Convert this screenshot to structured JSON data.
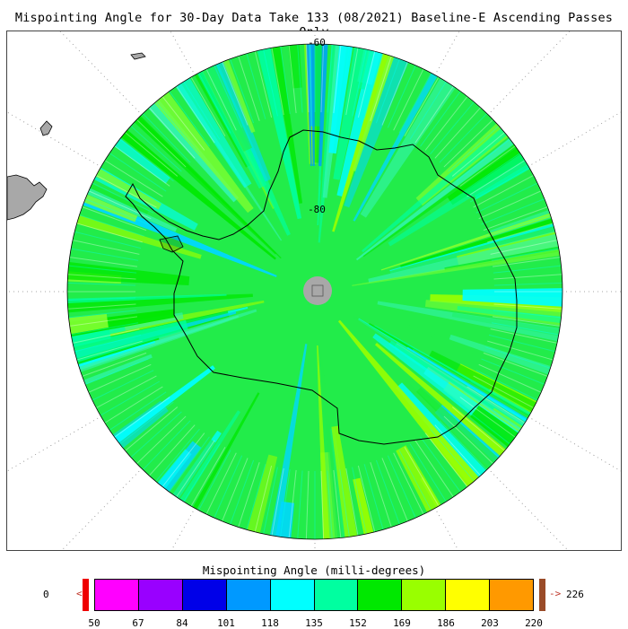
{
  "title": "Mispointing Angle for 30-Day Data Take 133 (08/2021) Baseline-E Ascending Passes Only",
  "map": {
    "projection": "south polar stereographic",
    "region": "Antarctica",
    "latitude_labels": [
      "-60",
      "-80"
    ],
    "land_color": "#a8a8a8",
    "coastline_color": "#000000",
    "pole_marker_color": "#a8a8a8"
  },
  "colorbar": {
    "title": "Mispointing Angle (milli-degrees)",
    "ticks": [
      "50",
      "67",
      "84",
      "101",
      "118",
      "135",
      "152",
      "169",
      "186",
      "203",
      "220"
    ],
    "colors": [
      "#ff00ff",
      "#9900ff",
      "#0000e8",
      "#0099ff",
      "#00ffff",
      "#00ffa0",
      "#00e800",
      "#99ff00",
      "#ffff00",
      "#ff9900"
    ],
    "under_value": "0",
    "under_color": "#ee0000",
    "over_value": "226",
    "over_color": "#9a4b28",
    "under_arrow": "<",
    "over_arrow": "->"
  }
}
